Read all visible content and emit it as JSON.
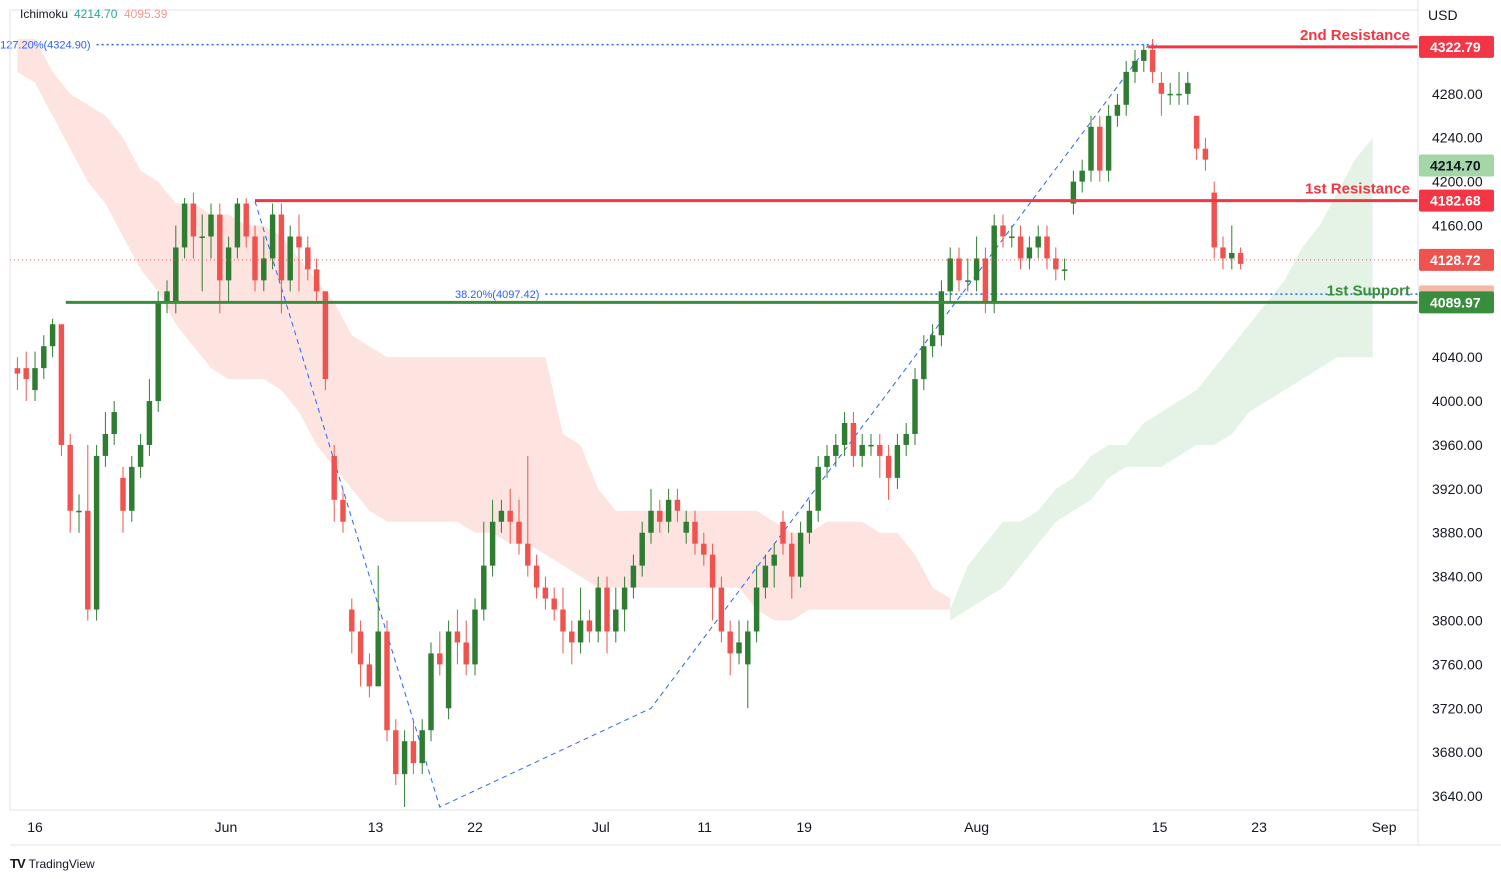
{
  "legend": {
    "title": "Ichimoku",
    "value_1": "4214.70",
    "value_2": "4095.39"
  },
  "brand": {
    "logo": "TV",
    "name": "TradingView"
  },
  "colors": {
    "up": "#2e7d32",
    "down": "#ef5350",
    "resistance": "#f23645",
    "support": "#388e3c",
    "fib": "#2962ff",
    "cloud_red": "#fde4e1",
    "cloud_green": "#e4f3e6",
    "price_line": "#ef5350"
  },
  "chart_data": {
    "type": "candlestick",
    "currency": "USD",
    "ylim": [
      3620,
      4340
    ],
    "y_ticks": [
      4280,
      4240,
      4200,
      4160,
      4040,
      4000,
      3960,
      3920,
      3880,
      3840,
      3800,
      3760,
      3720,
      3680,
      3640
    ],
    "x_ticks": [
      "16",
      "Jun",
      "13",
      "22",
      "Jul",
      "11",
      "19",
      "Aug",
      "15",
      "23",
      "Sep"
    ],
    "x_tick_index": [
      2,
      23.7,
      40.7,
      52,
      66.3,
      78.1,
      89.4,
      109,
      129.8,
      141.1,
      155.3
    ],
    "bars_total_width": 160,
    "candles": [
      [
        4030,
        4025,
        4040,
        4010
      ],
      [
        4030,
        4020,
        4045,
        4000
      ],
      [
        4010,
        4030,
        4045,
        4000
      ],
      [
        4030,
        4050,
        4060,
        4020
      ],
      [
        4050,
        4070,
        4075,
        4040
      ],
      [
        4070,
        3960,
        4040,
        3950
      ],
      [
        3960,
        3900,
        3970,
        3880
      ],
      [
        3900,
        3900,
        3915,
        3880
      ],
      [
        3900,
        3810,
        3960,
        3800
      ],
      [
        3810,
        3950,
        3960,
        3800
      ],
      [
        3950,
        3970,
        3990,
        3940
      ],
      [
        3970,
        3990,
        4000,
        3960
      ],
      [
        3930,
        3900,
        3940,
        3880
      ],
      [
        3900,
        3940,
        3950,
        3890
      ],
      [
        3940,
        3960,
        3970,
        3930
      ],
      [
        3960,
        4000,
        4020,
        3950
      ],
      [
        4000,
        4090,
        4100,
        3990
      ],
      [
        4090,
        4100,
        4110,
        4080
      ],
      [
        4090,
        4140,
        4160,
        4080
      ],
      [
        4140,
        4180,
        4185,
        4130
      ],
      [
        4180,
        4150,
        4190,
        4130
      ],
      [
        4150,
        4150,
        4170,
        4100
      ],
      [
        4150,
        4170,
        4180,
        4130
      ],
      [
        4170,
        4110,
        4180,
        4080
      ],
      [
        4110,
        4140,
        4150,
        4090
      ],
      [
        4140,
        4180,
        4185,
        4130
      ],
      [
        4180,
        4150,
        4185,
        4140
      ],
      [
        4150,
        4110,
        4160,
        4100
      ],
      [
        4110,
        4130,
        4150,
        4100
      ],
      [
        4130,
        4170,
        4180,
        4120
      ],
      [
        4170,
        4110,
        4180,
        4080
      ],
      [
        4110,
        4150,
        4160,
        4100
      ],
      [
        4150,
        4140,
        4170,
        4100
      ],
      [
        4140,
        4120,
        4150,
        4110
      ],
      [
        4120,
        4100,
        4130,
        4090
      ],
      [
        4100,
        4020,
        4100,
        4010
      ],
      [
        3950,
        3910,
        3960,
        3890
      ],
      [
        3910,
        3890,
        3920,
        3880
      ],
      [
        3810,
        3790,
        3820,
        3770
      ],
      [
        3790,
        3760,
        3800,
        3740
      ],
      [
        3760,
        3740,
        3770,
        3730
      ],
      [
        3740,
        3790,
        3850,
        3740
      ],
      [
        3790,
        3700,
        3800,
        3690
      ],
      [
        3700,
        3660,
        3710,
        3650
      ],
      [
        3660,
        3690,
        3700,
        3630
      ],
      [
        3690,
        3670,
        3710,
        3660
      ],
      [
        3670,
        3700,
        3710,
        3660
      ],
      [
        3700,
        3770,
        3780,
        3690
      ],
      [
        3770,
        3760,
        3790,
        3750
      ],
      [
        3720,
        3790,
        3800,
        3710
      ],
      [
        3790,
        3780,
        3810,
        3760
      ],
      [
        3780,
        3760,
        3800,
        3750
      ],
      [
        3760,
        3810,
        3820,
        3750
      ],
      [
        3810,
        3850,
        3890,
        3800
      ],
      [
        3850,
        3890,
        3910,
        3840
      ],
      [
        3890,
        3900,
        3910,
        3880
      ],
      [
        3900,
        3890,
        3920,
        3870
      ],
      [
        3890,
        3870,
        3910,
        3860
      ],
      [
        3870,
        3850,
        3950,
        3840
      ],
      [
        3850,
        3830,
        3860,
        3820
      ],
      [
        3830,
        3820,
        3840,
        3810
      ],
      [
        3820,
        3810,
        3830,
        3800
      ],
      [
        3810,
        3790,
        3830,
        3770
      ],
      [
        3790,
        3780,
        3800,
        3760
      ],
      [
        3780,
        3800,
        3830,
        3770
      ],
      [
        3800,
        3790,
        3810,
        3780
      ],
      [
        3790,
        3830,
        3840,
        3780
      ],
      [
        3830,
        3790,
        3840,
        3770
      ],
      [
        3790,
        3810,
        3830,
        3780
      ],
      [
        3810,
        3830,
        3840,
        3790
      ],
      [
        3830,
        3850,
        3860,
        3820
      ],
      [
        3850,
        3880,
        3890,
        3840
      ],
      [
        3880,
        3900,
        3920,
        3870
      ],
      [
        3900,
        3890,
        3910,
        3880
      ],
      [
        3890,
        3910,
        3920,
        3880
      ],
      [
        3910,
        3900,
        3920,
        3890
      ],
      [
        3880,
        3890,
        3900,
        3870
      ],
      [
        3890,
        3870,
        3900,
        3860
      ],
      [
        3870,
        3860,
        3880,
        3850
      ],
      [
        3860,
        3830,
        3870,
        3800
      ],
      [
        3830,
        3790,
        3840,
        3780
      ],
      [
        3790,
        3770,
        3800,
        3750
      ],
      [
        3770,
        3780,
        3800,
        3760
      ],
      [
        3760,
        3790,
        3800,
        3720
      ],
      [
        3790,
        3830,
        3850,
        3780
      ],
      [
        3830,
        3850,
        3860,
        3820
      ],
      [
        3850,
        3860,
        3870,
        3830
      ],
      [
        3890,
        3870,
        3900,
        3860
      ],
      [
        3870,
        3840,
        3880,
        3820
      ],
      [
        3840,
        3880,
        3890,
        3830
      ],
      [
        3880,
        3900,
        3910,
        3870
      ],
      [
        3900,
        3940,
        3950,
        3890
      ],
      [
        3940,
        3950,
        3960,
        3930
      ],
      [
        3950,
        3960,
        3970,
        3940
      ],
      [
        3960,
        3980,
        3990,
        3950
      ],
      [
        3980,
        3950,
        3990,
        3940
      ],
      [
        3950,
        3960,
        3970,
        3940
      ],
      [
        3960,
        3960,
        3970,
        3950
      ],
      [
        3960,
        3950,
        3970,
        3930
      ],
      [
        3950,
        3930,
        3960,
        3910
      ],
      [
        3930,
        3960,
        3970,
        3920
      ],
      [
        3960,
        3970,
        3980,
        3950
      ],
      [
        3970,
        4020,
        4030,
        3960
      ],
      [
        4020,
        4050,
        4060,
        4010
      ],
      [
        4050,
        4060,
        4070,
        4040
      ],
      [
        4060,
        4100,
        4110,
        4050
      ],
      [
        4100,
        4130,
        4140,
        4090
      ],
      [
        4130,
        4110,
        4140,
        4100
      ],
      [
        4110,
        4110,
        4130,
        4100
      ],
      [
        4110,
        4130,
        4150,
        4100
      ],
      [
        4130,
        4090,
        4140,
        4080
      ],
      [
        4090,
        4160,
        4170,
        4080
      ],
      [
        4160,
        4150,
        4170,
        4140
      ],
      [
        4150,
        4150,
        4160,
        4140
      ],
      [
        4150,
        4130,
        4160,
        4120
      ],
      [
        4130,
        4140,
        4150,
        4120
      ],
      [
        4140,
        4150,
        4160,
        4130
      ],
      [
        4150,
        4130,
        4160,
        4120
      ],
      [
        4130,
        4120,
        4140,
        4110
      ],
      [
        4120,
        4120,
        4130,
        4110
      ],
      [
        4180,
        4200,
        4210,
        4170
      ],
      [
        4200,
        4210,
        4220,
        4190
      ],
      [
        4210,
        4250,
        4260,
        4200
      ],
      [
        4250,
        4210,
        4260,
        4200
      ],
      [
        4210,
        4260,
        4270,
        4200
      ],
      [
        4260,
        4270,
        4280,
        4250
      ],
      [
        4270,
        4300,
        4310,
        4260
      ],
      [
        4300,
        4310,
        4320,
        4290
      ],
      [
        4310,
        4320,
        4325,
        4300
      ],
      [
        4320,
        4300,
        4330,
        4290
      ],
      [
        4290,
        4280,
        4300,
        4260
      ],
      [
        4280,
        4280,
        4290,
        4270
      ],
      [
        4280,
        4280,
        4300,
        4270
      ],
      [
        4280,
        4290,
        4300,
        4270
      ],
      [
        4260,
        4230,
        4260,
        4220
      ],
      [
        4230,
        4220,
        4240,
        4210
      ],
      [
        4190,
        4140,
        4200,
        4130
      ],
      [
        4140,
        4130,
        4150,
        4120
      ],
      [
        4130,
        4135,
        4160,
        4120
      ],
      [
        4135,
        4125,
        4140,
        4120
      ]
    ],
    "candle_start_index": 0,
    "cloud_red": [
      [
        0,
        4330
      ],
      [
        2,
        4330
      ],
      [
        4,
        4300
      ],
      [
        6,
        4280
      ],
      [
        8,
        4270
      ],
      [
        10,
        4260
      ],
      [
        12,
        4240
      ],
      [
        14,
        4210
      ],
      [
        16,
        4200
      ],
      [
        18,
        4180
      ],
      [
        20,
        4180
      ],
      [
        22,
        4170
      ],
      [
        24,
        4170
      ],
      [
        26,
        4160
      ],
      [
        28,
        4160
      ],
      [
        30,
        4150
      ],
      [
        32,
        4130
      ],
      [
        34,
        4110
      ],
      [
        36,
        4090
      ],
      [
        38,
        4060
      ],
      [
        40,
        4050
      ],
      [
        42,
        4040
      ],
      [
        44,
        4040
      ],
      [
        46,
        4040
      ],
      [
        48,
        4040
      ],
      [
        50,
        4040
      ],
      [
        52,
        4040
      ],
      [
        54,
        4040
      ],
      [
        56,
        4040
      ],
      [
        58,
        4040
      ],
      [
        60,
        4040
      ],
      [
        62,
        3970
      ],
      [
        64,
        3960
      ],
      [
        66,
        3920
      ],
      [
        68,
        3900
      ],
      [
        70,
        3900
      ],
      [
        72,
        3900
      ],
      [
        74,
        3900
      ],
      [
        76,
        3900
      ],
      [
        78,
        3900
      ],
      [
        80,
        3900
      ],
      [
        82,
        3900
      ],
      [
        84,
        3900
      ],
      [
        86,
        3890
      ],
      [
        88,
        3880
      ],
      [
        90,
        3880
      ],
      [
        92,
        3890
      ],
      [
        94,
        3890
      ],
      [
        96,
        3890
      ],
      [
        98,
        3880
      ],
      [
        100,
        3880
      ],
      [
        102,
        3860
      ],
      [
        104,
        3830
      ],
      [
        106,
        3820
      ]
    ],
    "cloud_red_lower": [
      [
        0,
        4300
      ],
      [
        2,
        4290
      ],
      [
        4,
        4260
      ],
      [
        6,
        4230
      ],
      [
        8,
        4200
      ],
      [
        10,
        4180
      ],
      [
        12,
        4150
      ],
      [
        14,
        4120
      ],
      [
        16,
        4100
      ],
      [
        18,
        4070
      ],
      [
        20,
        4050
      ],
      [
        22,
        4030
      ],
      [
        24,
        4020
      ],
      [
        26,
        4020
      ],
      [
        28,
        4020
      ],
      [
        30,
        4010
      ],
      [
        32,
        3990
      ],
      [
        34,
        3960
      ],
      [
        36,
        3940
      ],
      [
        38,
        3920
      ],
      [
        40,
        3900
      ],
      [
        42,
        3890
      ],
      [
        44,
        3890
      ],
      [
        46,
        3890
      ],
      [
        48,
        3890
      ],
      [
        50,
        3890
      ],
      [
        52,
        3880
      ],
      [
        54,
        3880
      ],
      [
        56,
        3870
      ],
      [
        58,
        3870
      ],
      [
        60,
        3860
      ],
      [
        62,
        3850
      ],
      [
        64,
        3840
      ],
      [
        66,
        3830
      ],
      [
        68,
        3830
      ],
      [
        70,
        3830
      ],
      [
        72,
        3830
      ],
      [
        74,
        3830
      ],
      [
        76,
        3830
      ],
      [
        78,
        3830
      ],
      [
        80,
        3830
      ],
      [
        82,
        3830
      ],
      [
        84,
        3810
      ],
      [
        86,
        3800
      ],
      [
        88,
        3800
      ],
      [
        90,
        3810
      ],
      [
        92,
        3810
      ],
      [
        94,
        3810
      ],
      [
        96,
        3810
      ],
      [
        98,
        3810
      ],
      [
        100,
        3810
      ],
      [
        102,
        3810
      ],
      [
        104,
        3810
      ],
      [
        106,
        3810
      ]
    ],
    "cloud_green": [
      [
        106,
        3810
      ],
      [
        108,
        3850
      ],
      [
        110,
        3870
      ],
      [
        112,
        3890
      ],
      [
        114,
        3890
      ],
      [
        116,
        3900
      ],
      [
        118,
        3920
      ],
      [
        120,
        3930
      ],
      [
        122,
        3950
      ],
      [
        124,
        3960
      ],
      [
        126,
        3960
      ],
      [
        128,
        3980
      ],
      [
        130,
        3990
      ],
      [
        132,
        4000
      ],
      [
        134,
        4010
      ],
      [
        136,
        4030
      ],
      [
        138,
        4050
      ],
      [
        140,
        4070
      ],
      [
        142,
        4090
      ],
      [
        144,
        4110
      ],
      [
        146,
        4140
      ],
      [
        148,
        4160
      ],
      [
        150,
        4190
      ],
      [
        152,
        4220
      ],
      [
        154,
        4240
      ]
    ],
    "cloud_green_lower": [
      [
        106,
        3800
      ],
      [
        108,
        3810
      ],
      [
        110,
        3820
      ],
      [
        112,
        3830
      ],
      [
        114,
        3850
      ],
      [
        116,
        3870
      ],
      [
        118,
        3890
      ],
      [
        120,
        3900
      ],
      [
        122,
        3910
      ],
      [
        124,
        3930
      ],
      [
        126,
        3940
      ],
      [
        128,
        3940
      ],
      [
        130,
        3940
      ],
      [
        132,
        3950
      ],
      [
        134,
        3960
      ],
      [
        136,
        3960
      ],
      [
        138,
        3970
      ],
      [
        140,
        3990
      ],
      [
        142,
        4000
      ],
      [
        144,
        4010
      ],
      [
        146,
        4020
      ],
      [
        148,
        4030
      ],
      [
        150,
        4040
      ],
      [
        152,
        4040
      ],
      [
        154,
        4040
      ]
    ],
    "fib_lines": [
      {
        "label": "127.20%(4324.90)",
        "price": 4324.9,
        "from": 9,
        "to": 129.5
      },
      {
        "label": "38.20%(4097.42)",
        "price": 4097.42,
        "from": 60,
        "to": 160
      }
    ],
    "fib_swing": [
      [
        27,
        4182
      ],
      [
        48,
        3630
      ],
      [
        72,
        3720
      ],
      [
        128.5,
        4324
      ]
    ],
    "levels": [
      {
        "name": "2nd Resistance",
        "price": 4322.79,
        "from": 128.5,
        "color_key": "resistance"
      },
      {
        "name": "1st Resistance",
        "price": 4182.68,
        "from": 27,
        "color_key": "resistance"
      },
      {
        "name": "1st Support",
        "price": 4089.97,
        "from": 5.5,
        "color_key": "support"
      }
    ],
    "price_tags": [
      {
        "text": "4322.79",
        "price": 4322.79,
        "bg": "#f23645",
        "fg": "#ffffff"
      },
      {
        "text": "4214.70",
        "price": 4214.7,
        "bg": "#a5d6a7",
        "fg": "#131722"
      },
      {
        "text": "4182.68",
        "price": 4182.68,
        "bg": "#f23645",
        "fg": "#ffffff"
      },
      {
        "text": "4128.72",
        "price": 4128.72,
        "bg": "#ef5350",
        "fg": "#ffffff"
      },
      {
        "text": "4095.39",
        "price": 4095.39,
        "bg": "#f4b9a9",
        "fg": "#131722"
      },
      {
        "text": "4089.97",
        "price": 4089.97,
        "bg": "#388e3c",
        "fg": "#ffffff"
      }
    ],
    "last_price": 4128.72
  }
}
